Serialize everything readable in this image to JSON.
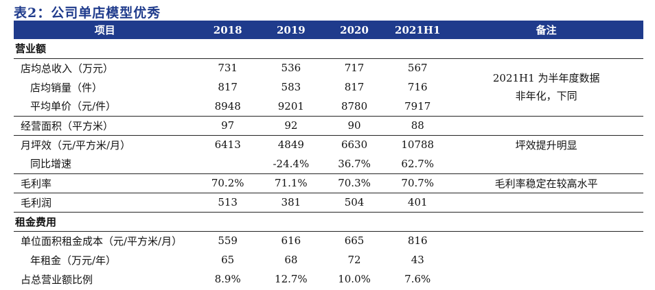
{
  "title": "表2：公司单店模型优秀",
  "header": {
    "item": "项目",
    "y2018": "2018",
    "y2019": "2019",
    "y2020": "2020",
    "y2021": "2021H1",
    "note": "备注"
  },
  "sections": {
    "revenue": "营业额",
    "rent": "租金费用"
  },
  "rows": {
    "rev_store": {
      "label": "店均总收入（万元）",
      "v": [
        "731",
        "536",
        "717",
        "567"
      ]
    },
    "sales_vol": {
      "label": "店均销量（件）",
      "v": [
        "817",
        "583",
        "817",
        "716"
      ]
    },
    "unit_price": {
      "label": "平均单价（元/件）",
      "v": [
        "8948",
        "9201",
        "8780",
        "7917"
      ]
    },
    "area": {
      "label": "经营面积（平方米）",
      "v": [
        "97",
        "92",
        "90",
        "88"
      ]
    },
    "efficiency": {
      "label": "月坪效（元/平方米/月）",
      "v": [
        "6413",
        "4849",
        "6630",
        "10788"
      ]
    },
    "growth": {
      "label": "同比增速",
      "v": [
        "",
        "-24.4%",
        "36.7%",
        "62.7%"
      ]
    },
    "gross_margin": {
      "label": "毛利率",
      "v": [
        "70.2%",
        "71.1%",
        "70.3%",
        "70.7%"
      ]
    },
    "gross_profit": {
      "label": "毛利润",
      "v": [
        "513",
        "381",
        "504",
        "401"
      ]
    },
    "rent_unit": {
      "label": "单位面积租金成本（元/平方米/月）",
      "v": [
        "559",
        "616",
        "665",
        "816"
      ]
    },
    "rent_year": {
      "label": "年租金（万元/年）",
      "v": [
        "65",
        "68",
        "72",
        "43"
      ]
    },
    "rent_ratio": {
      "label": "占总营业额比例",
      "v": [
        "8.9%",
        "12.7%",
        "10.0%",
        "7.6%"
      ]
    }
  },
  "notes": {
    "h1_line1": "2021H1 为半年度数据",
    "h1_line2": "非年化，下同",
    "efficiency": "坪效提升明显",
    "margin": "毛利率稳定在较高水平"
  }
}
